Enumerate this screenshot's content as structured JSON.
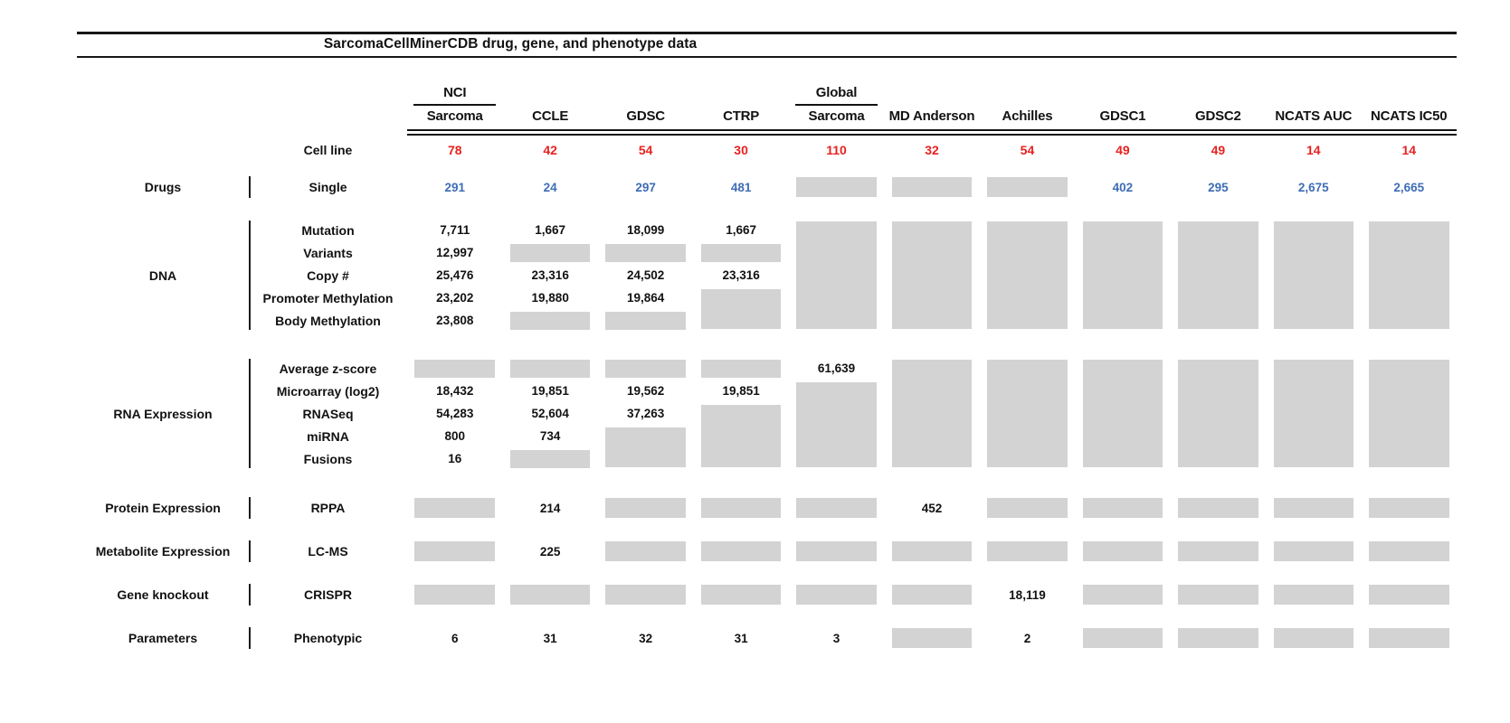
{
  "title": "SarcomaCellMinerCDB drug, gene, and phenotype data",
  "colors": {
    "value_red": "#e8211f",
    "value_blue": "#3e6db5",
    "placeholder_gray": "#d3d3d3",
    "line_black": "#161616"
  },
  "chart_data": {
    "type": "table",
    "title": "SarcomaCellMinerCDB drug, gene, and phenotype data",
    "columns": [
      {
        "top": "NCI",
        "label": "Sarcoma"
      },
      {
        "label": "CCLE"
      },
      {
        "label": "GDSC"
      },
      {
        "label": "CTRP"
      },
      {
        "top": "Global",
        "label": "Sarcoma"
      },
      {
        "label": "MD Anderson"
      },
      {
        "label": "Achilles"
      },
      {
        "label": "GDSC1"
      },
      {
        "label": "GDSC2"
      },
      {
        "label": "NCATS AUC"
      },
      {
        "label": "NCATS IC50"
      }
    ],
    "cell_line_row": {
      "label": "Cell line",
      "value_color": "red",
      "cells": [
        "78",
        "42",
        "54",
        "30",
        "110",
        "32",
        "54",
        "49",
        "49",
        "14",
        "14"
      ]
    },
    "sections": [
      {
        "category": "Drugs",
        "rows": [
          {
            "label": "Single",
            "value_color": "blue",
            "cells": [
              "291",
              "24",
              "297",
              "481",
              "G",
              "G",
              "G",
              "402",
              "295",
              "2,675",
              "2,665"
            ]
          }
        ]
      },
      {
        "category": "DNA",
        "rows": [
          {
            "label": "Mutation",
            "cells": [
              "7,711",
              "1,667",
              "18,099",
              "1,667",
              "GT",
              "GT",
              "GT",
              "GT",
              "GT",
              "GT",
              "GT"
            ]
          },
          {
            "label": "Variants",
            "cells": [
              "12,997",
              "G",
              "G",
              "G",
              "GM",
              "GM",
              "GM",
              "GM",
              "GM",
              "GM",
              "GM"
            ]
          },
          {
            "label": "Copy #",
            "cells": [
              "25,476",
              "23,316",
              "24,502",
              "23,316",
              "GM",
              "GM",
              "GM",
              "GM",
              "GM",
              "GM",
              "GM"
            ]
          },
          {
            "label": "Promoter Methylation",
            "cells": [
              "23,202",
              "19,880",
              "19,864",
              "GT",
              "GM",
              "GM",
              "GM",
              "GM",
              "GM",
              "GM",
              "GM"
            ]
          },
          {
            "label": "Body Methylation",
            "cells": [
              "23,808",
              "G",
              "G",
              "GB",
              "GB",
              "GB",
              "GB",
              "GB",
              "GB",
              "GB",
              "GB"
            ]
          }
        ]
      },
      {
        "category": "RNA Expression",
        "rows": [
          {
            "label": "Average z-score",
            "cells": [
              "G",
              "G",
              "G",
              "G",
              "61,639",
              "GT",
              "GT",
              "GT",
              "GT",
              "GT",
              "GT"
            ]
          },
          {
            "label": "Microarray (log2)",
            "cells": [
              "18,432",
              "19,851",
              "19,562",
              "19,851",
              "GT",
              "GM",
              "GM",
              "GM",
              "GM",
              "GM",
              "GM"
            ]
          },
          {
            "label": "RNASeq",
            "cells": [
              "54,283",
              "52,604",
              "37,263",
              "GT",
              "GM",
              "GM",
              "GM",
              "GM",
              "GM",
              "GM",
              "GM"
            ]
          },
          {
            "label": "miRNA",
            "cells": [
              "800",
              "734",
              "GT",
              "GM",
              "GM",
              "GM",
              "GM",
              "GM",
              "GM",
              "GM",
              "GM"
            ]
          },
          {
            "label": "Fusions",
            "cells": [
              "16",
              "G",
              "GB",
              "GB",
              "GB",
              "GB",
              "GB",
              "GB",
              "GB",
              "GB",
              "GB"
            ]
          }
        ]
      },
      {
        "category": "Protein Expression",
        "rows": [
          {
            "label": "RPPA",
            "cells": [
              "G",
              "214",
              "G",
              "G",
              "G",
              "452",
              "G",
              "G",
              "G",
              "G",
              "G"
            ]
          }
        ]
      },
      {
        "category": "Metabolite Expression",
        "rows": [
          {
            "label": "LC-MS",
            "cells": [
              "G",
              "225",
              "G",
              "G",
              "G",
              "G",
              "G",
              "G",
              "G",
              "G",
              "G"
            ]
          }
        ]
      },
      {
        "category": "Gene knockout",
        "rows": [
          {
            "label": "CRISPR",
            "cells": [
              "G",
              "G",
              "G",
              "G",
              "G",
              "G",
              "18,119",
              "G",
              "G",
              "G",
              "G"
            ]
          }
        ]
      },
      {
        "category": "Parameters",
        "rows": [
          {
            "label": "Phenotypic",
            "cells": [
              "6",
              "31",
              "32",
              "31",
              "3",
              "G",
              "2",
              "G",
              "G",
              "G",
              "G"
            ]
          }
        ]
      }
    ]
  }
}
